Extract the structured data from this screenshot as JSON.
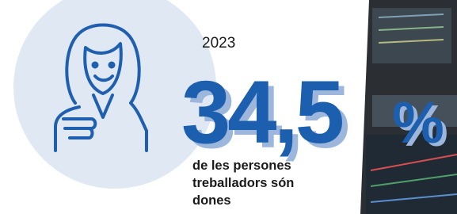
{
  "stat": {
    "year": "2023",
    "value": "34,5",
    "unit": "%",
    "description": [
      "de les persones",
      "treballadors són",
      "dones"
    ]
  }
}
